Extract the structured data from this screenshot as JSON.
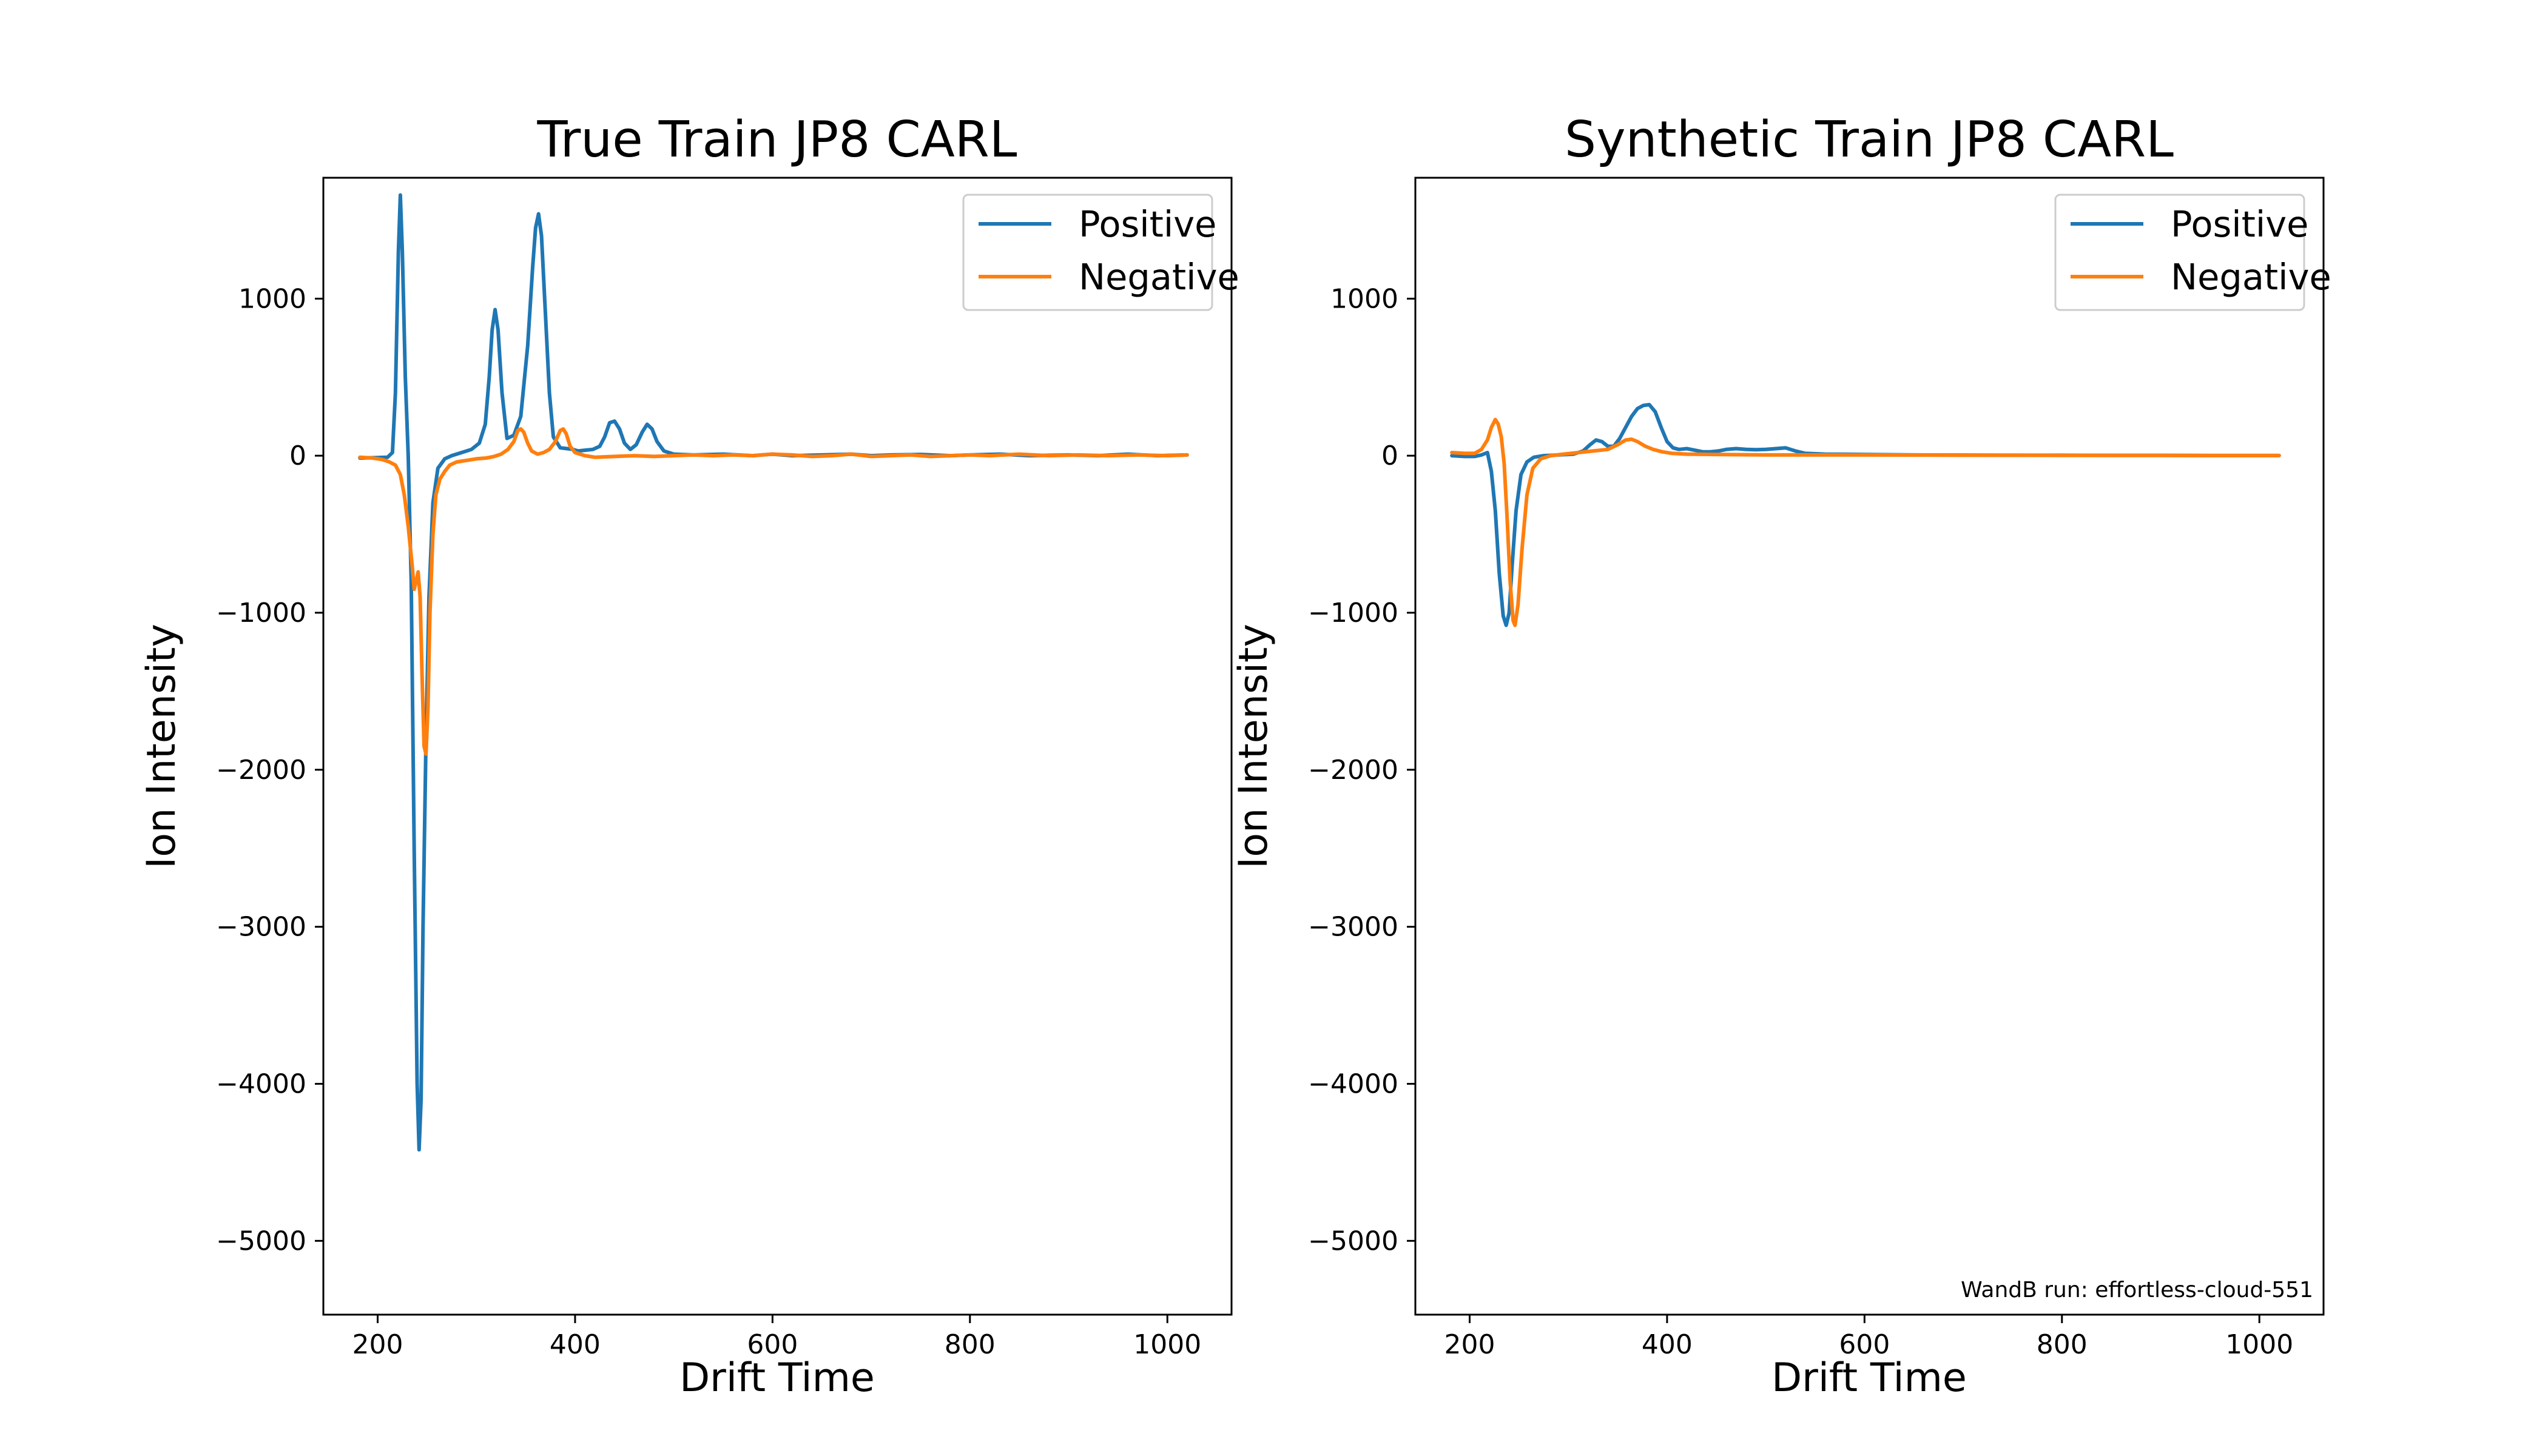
{
  "chart_data": [
    {
      "type": "line",
      "title": "True Train JP8 CARL",
      "xlabel": "Drift Time",
      "ylabel": "Ion Intensity",
      "xlim": [
        145,
        1065
      ],
      "ylim": [
        -5470,
        1770
      ],
      "xticks": [
        200,
        400,
        600,
        800,
        1000
      ],
      "yticks": [
        1000,
        0,
        -1000,
        -2000,
        -3000,
        -4000,
        -5000
      ],
      "xtick_labels": [
        "200",
        "400",
        "600",
        "800",
        "1000"
      ],
      "ytick_labels": [
        "1000",
        "0",
        "−1000",
        "−2000",
        "−3000",
        "−4000",
        "−5000"
      ],
      "legend": "top-right",
      "grid": false,
      "series": [
        {
          "name": "Positive",
          "color": "#1f77b4",
          "points": [
            [
              182,
              -15
            ],
            [
              200,
              -12
            ],
            [
              210,
              -10
            ],
            [
              215,
              20
            ],
            [
              218,
              400
            ],
            [
              221,
              1300
            ],
            [
              223,
              1660
            ],
            [
              225,
              1300
            ],
            [
              228,
              500
            ],
            [
              231,
              0
            ],
            [
              234,
              -800
            ],
            [
              237,
              -2500
            ],
            [
              240,
              -4000
            ],
            [
              242,
              -4420
            ],
            [
              244,
              -4100
            ],
            [
              246,
              -3000
            ],
            [
              249,
              -1800
            ],
            [
              252,
              -900
            ],
            [
              256,
              -300
            ],
            [
              261,
              -80
            ],
            [
              268,
              -20
            ],
            [
              275,
              0
            ],
            [
              285,
              20
            ],
            [
              295,
              40
            ],
            [
              303,
              80
            ],
            [
              309,
              200
            ],
            [
              313,
              500
            ],
            [
              316,
              800
            ],
            [
              319,
              930
            ],
            [
              322,
              800
            ],
            [
              326,
              400
            ],
            [
              331,
              110
            ],
            [
              338,
              130
            ],
            [
              345,
              250
            ],
            [
              352,
              700
            ],
            [
              357,
              1200
            ],
            [
              360,
              1450
            ],
            [
              363,
              1540
            ],
            [
              366,
              1400
            ],
            [
              370,
              900
            ],
            [
              374,
              400
            ],
            [
              378,
              120
            ],
            [
              385,
              50
            ],
            [
              392,
              45
            ],
            [
              398,
              40
            ],
            [
              403,
              30
            ],
            [
              410,
              35
            ],
            [
              418,
              40
            ],
            [
              425,
              60
            ],
            [
              430,
              120
            ],
            [
              435,
              210
            ],
            [
              440,
              220
            ],
            [
              445,
              170
            ],
            [
              450,
              80
            ],
            [
              456,
              40
            ],
            [
              462,
              70
            ],
            [
              468,
              150
            ],
            [
              473,
              200
            ],
            [
              478,
              170
            ],
            [
              483,
              90
            ],
            [
              490,
              30
            ],
            [
              500,
              10
            ],
            [
              520,
              5
            ],
            [
              550,
              10
            ],
            [
              580,
              0
            ],
            [
              600,
              10
            ],
            [
              620,
              0
            ],
            [
              650,
              5
            ],
            [
              680,
              10
            ],
            [
              700,
              0
            ],
            [
              720,
              5
            ],
            [
              750,
              8
            ],
            [
              780,
              0
            ],
            [
              800,
              5
            ],
            [
              830,
              10
            ],
            [
              860,
              0
            ],
            [
              900,
              5
            ],
            [
              930,
              0
            ],
            [
              960,
              10
            ],
            [
              990,
              0
            ],
            [
              1020,
              5
            ]
          ]
        },
        {
          "name": "Negative",
          "color": "#ff7f0e",
          "points": [
            [
              182,
              -10
            ],
            [
              195,
              -15
            ],
            [
              205,
              -25
            ],
            [
              212,
              -40
            ],
            [
              218,
              -60
            ],
            [
              223,
              -120
            ],
            [
              227,
              -250
            ],
            [
              231,
              -450
            ],
            [
              235,
              -700
            ],
            [
              237,
              -850
            ],
            [
              239,
              -800
            ],
            [
              241,
              -740
            ],
            [
              243,
              -900
            ],
            [
              245,
              -1400
            ],
            [
              247,
              -1850
            ],
            [
              249,
              -1900
            ],
            [
              251,
              -1600
            ],
            [
              253,
              -1000
            ],
            [
              256,
              -500
            ],
            [
              259,
              -250
            ],
            [
              263,
              -150
            ],
            [
              268,
              -100
            ],
            [
              273,
              -60
            ],
            [
              280,
              -40
            ],
            [
              290,
              -30
            ],
            [
              300,
              -20
            ],
            [
              310,
              -15
            ],
            [
              318,
              -5
            ],
            [
              325,
              10
            ],
            [
              332,
              40
            ],
            [
              338,
              90
            ],
            [
              342,
              160
            ],
            [
              345,
              170
            ],
            [
              348,
              150
            ],
            [
              352,
              80
            ],
            [
              356,
              30
            ],
            [
              362,
              10
            ],
            [
              368,
              20
            ],
            [
              374,
              40
            ],
            [
              380,
              90
            ],
            [
              385,
              160
            ],
            [
              388,
              170
            ],
            [
              391,
              140
            ],
            [
              395,
              60
            ],
            [
              400,
              20
            ],
            [
              410,
              0
            ],
            [
              420,
              -10
            ],
            [
              440,
              -5
            ],
            [
              460,
              0
            ],
            [
              480,
              -5
            ],
            [
              500,
              0
            ],
            [
              520,
              5
            ],
            [
              540,
              0
            ],
            [
              560,
              5
            ],
            [
              580,
              0
            ],
            [
              600,
              10
            ],
            [
              620,
              5
            ],
            [
              640,
              -5
            ],
            [
              660,
              0
            ],
            [
              680,
              10
            ],
            [
              700,
              -5
            ],
            [
              720,
              0
            ],
            [
              740,
              5
            ],
            [
              760,
              -5
            ],
            [
              780,
              0
            ],
            [
              800,
              5
            ],
            [
              820,
              0
            ],
            [
              850,
              10
            ],
            [
              880,
              0
            ],
            [
              910,
              5
            ],
            [
              940,
              0
            ],
            [
              970,
              5
            ],
            [
              1000,
              0
            ],
            [
              1020,
              5
            ]
          ]
        }
      ]
    },
    {
      "type": "line",
      "title": "Synthetic Train JP8 CARL",
      "xlabel": "Drift Time",
      "ylabel": "Ion Intensity",
      "xlim": [
        145,
        1065
      ],
      "ylim": [
        -5470,
        1770
      ],
      "xticks": [
        200,
        400,
        600,
        800,
        1000
      ],
      "yticks": [
        1000,
        0,
        -1000,
        -2000,
        -3000,
        -4000,
        -5000
      ],
      "xtick_labels": [
        "200",
        "400",
        "600",
        "800",
        "1000"
      ],
      "ytick_labels": [
        "1000",
        "0",
        "−1000",
        "−2000",
        "−3000",
        "−4000",
        "−5000"
      ],
      "legend": "top-right",
      "grid": false,
      "annotation": "WandB run: effortless-cloud-551",
      "series": [
        {
          "name": "Positive",
          "color": "#1f77b4",
          "points": [
            [
              182,
              0
            ],
            [
              195,
              -5
            ],
            [
              205,
              -5
            ],
            [
              212,
              5
            ],
            [
              218,
              20
            ],
            [
              222,
              -100
            ],
            [
              226,
              -350
            ],
            [
              230,
              -750
            ],
            [
              234,
              -1020
            ],
            [
              237,
              -1080
            ],
            [
              240,
              -1000
            ],
            [
              243,
              -700
            ],
            [
              247,
              -350
            ],
            [
              252,
              -120
            ],
            [
              258,
              -40
            ],
            [
              265,
              -10
            ],
            [
              275,
              0
            ],
            [
              290,
              5
            ],
            [
              305,
              10
            ],
            [
              315,
              30
            ],
            [
              322,
              70
            ],
            [
              328,
              100
            ],
            [
              334,
              90
            ],
            [
              340,
              60
            ],
            [
              346,
              60
            ],
            [
              352,
              110
            ],
            [
              358,
              180
            ],
            [
              364,
              250
            ],
            [
              370,
              300
            ],
            [
              376,
              320
            ],
            [
              382,
              325
            ],
            [
              388,
              280
            ],
            [
              394,
              180
            ],
            [
              400,
              90
            ],
            [
              406,
              50
            ],
            [
              412,
              40
            ],
            [
              420,
              45
            ],
            [
              428,
              35
            ],
            [
              436,
              25
            ],
            [
              444,
              25
            ],
            [
              452,
              30
            ],
            [
              460,
              40
            ],
            [
              470,
              45
            ],
            [
              480,
              40
            ],
            [
              490,
              38
            ],
            [
              500,
              40
            ],
            [
              510,
              45
            ],
            [
              520,
              50
            ],
            [
              530,
              30
            ],
            [
              540,
              15
            ],
            [
              560,
              10
            ],
            [
              600,
              8
            ],
            [
              650,
              5
            ],
            [
              700,
              4
            ],
            [
              750,
              3
            ],
            [
              800,
              3
            ],
            [
              850,
              2
            ],
            [
              900,
              2
            ],
            [
              950,
              1
            ],
            [
              1000,
              1
            ],
            [
              1020,
              1
            ]
          ]
        },
        {
          "name": "Negative",
          "color": "#ff7f0e",
          "points": [
            [
              182,
              20
            ],
            [
              195,
              15
            ],
            [
              205,
              15
            ],
            [
              212,
              40
            ],
            [
              218,
              100
            ],
            [
              222,
              180
            ],
            [
              226,
              230
            ],
            [
              229,
              200
            ],
            [
              232,
              120
            ],
            [
              235,
              -50
            ],
            [
              238,
              -400
            ],
            [
              241,
              -800
            ],
            [
              244,
              -1050
            ],
            [
              246,
              -1080
            ],
            [
              249,
              -950
            ],
            [
              253,
              -600
            ],
            [
              258,
              -250
            ],
            [
              264,
              -80
            ],
            [
              272,
              -20
            ],
            [
              282,
              0
            ],
            [
              295,
              10
            ],
            [
              310,
              20
            ],
            [
              325,
              30
            ],
            [
              340,
              40
            ],
            [
              350,
              70
            ],
            [
              358,
              100
            ],
            [
              364,
              105
            ],
            [
              370,
              90
            ],
            [
              378,
              60
            ],
            [
              386,
              40
            ],
            [
              395,
              25
            ],
            [
              405,
              15
            ],
            [
              420,
              10
            ],
            [
              450,
              8
            ],
            [
              500,
              5
            ],
            [
              550,
              5
            ],
            [
              600,
              5
            ],
            [
              650,
              4
            ],
            [
              700,
              3
            ],
            [
              750,
              3
            ],
            [
              800,
              2
            ],
            [
              850,
              2
            ],
            [
              900,
              2
            ],
            [
              950,
              1
            ],
            [
              1000,
              1
            ],
            [
              1020,
              1
            ]
          ]
        }
      ]
    }
  ]
}
